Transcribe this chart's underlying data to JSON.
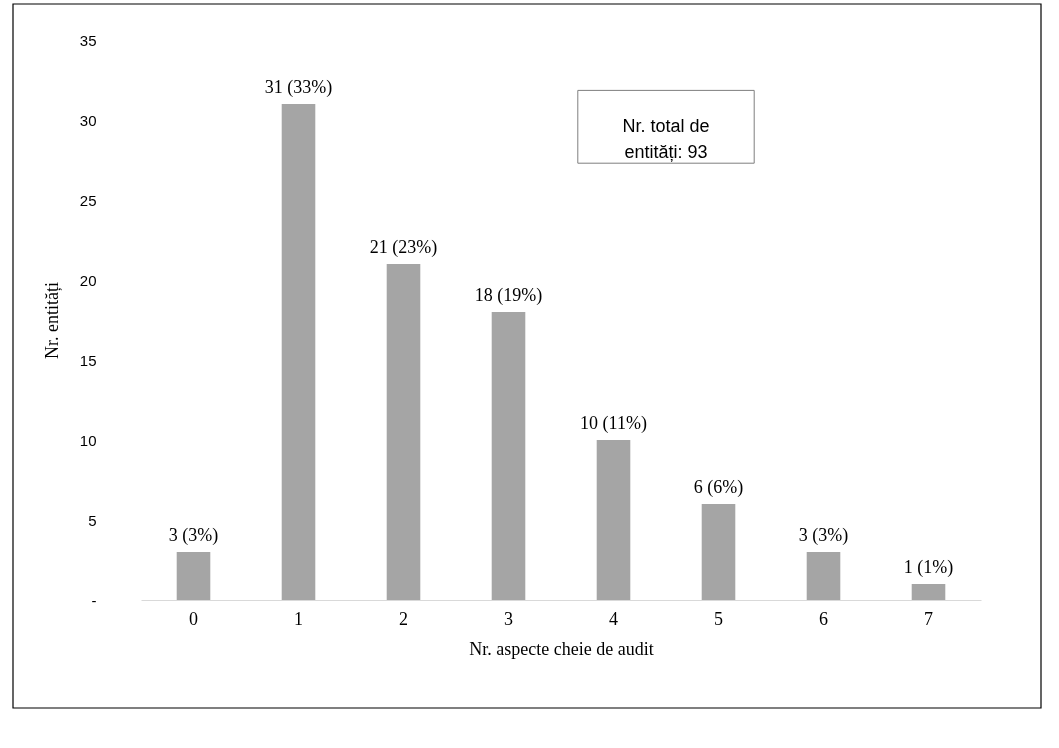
{
  "chart_data": {
    "type": "bar",
    "xlabel": "Nr. aspecte cheie de audit",
    "ylabel": "Nr. entități",
    "categories": [
      "0",
      "1",
      "2",
      "3",
      "4",
      "5",
      "6",
      "7"
    ],
    "values": [
      3,
      31,
      21,
      18,
      10,
      6,
      3,
      1
    ],
    "value_labels": [
      "3 (3%)",
      "31 (33%)",
      "21 (23%)",
      "18 (19%)",
      "10 (11%)",
      "6 (6%)",
      "3 (3%)",
      "1 (1%)"
    ],
    "color": "#a5a5a5",
    "ylim": [
      0,
      35
    ],
    "yticks": [
      {
        "value": 0,
        "label": "-"
      },
      5,
      10,
      15,
      20,
      25,
      30,
      35
    ],
    "grid": false,
    "annotations": [
      "Nr. total de entități: 93"
    ]
  }
}
